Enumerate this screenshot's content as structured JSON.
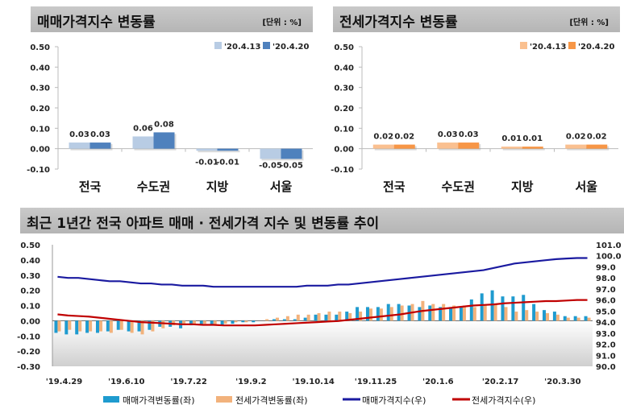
{
  "charts_header": [
    {
      "title": "매매가격지수 변동률",
      "unit": "[단위 : %]"
    },
    {
      "title": "전세가격지수 변동률",
      "unit": "[단위 : %]"
    },
    {
      "title": "최근 1년간 전국 아파트 매매 · 전세가격 지수 및 변동률 추이"
    }
  ],
  "chart_data": [
    {
      "type": "bar",
      "title": "매매가격지수 변동률",
      "unit": "[단위 : %]",
      "categories": [
        "전국",
        "수도권",
        "지방",
        "서울"
      ],
      "ylim": [
        -0.1,
        0.5
      ],
      "yticks": [
        "0.50",
        "0.40",
        "0.30",
        "0.20",
        "0.10",
        "0.00",
        "-0.10"
      ],
      "legend_position": "top-right",
      "series": [
        {
          "name": "'20.4.13",
          "values": [
            0.03,
            0.06,
            -0.01,
            -0.05
          ],
          "color": "#b8cce4"
        },
        {
          "name": "'20.4.20",
          "values": [
            0.03,
            0.08,
            -0.01,
            -0.05
          ],
          "color": "#4f81bd"
        }
      ]
    },
    {
      "type": "bar",
      "title": "전세가격지수 변동률",
      "unit": "[단위 : %]",
      "categories": [
        "전국",
        "수도권",
        "지방",
        "서울"
      ],
      "ylim": [
        -0.1,
        0.5
      ],
      "yticks": [
        "0.50",
        "0.40",
        "0.30",
        "0.20",
        "0.10",
        "0.00",
        "-0.10"
      ],
      "legend_position": "top-right",
      "series": [
        {
          "name": "'20.4.13",
          "values": [
            0.02,
            0.03,
            0.01,
            0.02
          ],
          "color": "#fac090"
        },
        {
          "name": "'20.4.20",
          "values": [
            0.02,
            0.03,
            0.01,
            0.02
          ],
          "color": "#f79646"
        }
      ]
    },
    {
      "type": "bar+line",
      "title": "최근 1년간 전국 아파트 매매 · 전세가격 지수 및 변동률 추이",
      "xticks": [
        "'19.4.29",
        "'19.6.10",
        "'19.7.22",
        "'19.9.2",
        "'19.10.14",
        "'19.11.25",
        "'20.1.6",
        "'20.2.17",
        "'20.3.30"
      ],
      "ylim_left": [
        -0.3,
        0.5
      ],
      "yticks_left": [
        "0.50",
        "0.40",
        "0.30",
        "0.20",
        "0.10",
        "0.00",
        "-0.10",
        "-0.20",
        "-0.30"
      ],
      "ylim_right": [
        90.0,
        101.0
      ],
      "yticks_right": [
        "101.0",
        "100.0",
        "99.0",
        "98.0",
        "97.0",
        "96.0",
        "95.0",
        "94.0",
        "93.0",
        "92.0",
        "91.0",
        "90.0"
      ],
      "legend_position": "bottom",
      "series": [
        {
          "name": "매매가격변동률(좌)",
          "kind": "bar",
          "axis": "left",
          "color": "#1f9bcf",
          "values": [
            -0.08,
            -0.09,
            -0.09,
            -0.08,
            -0.08,
            -0.07,
            -0.06,
            -0.07,
            -0.07,
            -0.06,
            -0.04,
            -0.04,
            -0.05,
            -0.03,
            -0.03,
            -0.03,
            -0.03,
            -0.02,
            -0.01,
            -0.01,
            0.0,
            0.01,
            0.01,
            0.01,
            0.02,
            0.04,
            0.04,
            0.04,
            0.06,
            0.09,
            0.09,
            0.09,
            0.11,
            0.11,
            0.1,
            0.09,
            0.1,
            0.09,
            0.09,
            0.09,
            0.14,
            0.18,
            0.2,
            0.16,
            0.16,
            0.17,
            0.11,
            0.07,
            0.06,
            0.03,
            0.03,
            0.03
          ]
        },
        {
          "name": "전세가격변동률(좌)",
          "kind": "bar",
          "axis": "left",
          "color": "#f2b27c",
          "values": [
            -0.07,
            -0.06,
            -0.07,
            -0.07,
            -0.07,
            -0.08,
            -0.06,
            -0.08,
            -0.09,
            -0.07,
            -0.05,
            -0.03,
            -0.03,
            -0.02,
            -0.02,
            -0.03,
            -0.02,
            -0.01,
            -0.01,
            0.0,
            0.01,
            0.02,
            0.03,
            0.04,
            0.04,
            0.05,
            0.06,
            0.06,
            0.05,
            0.06,
            0.08,
            0.08,
            0.09,
            0.1,
            0.11,
            0.13,
            0.11,
            0.11,
            0.1,
            0.1,
            0.09,
            0.1,
            0.11,
            0.09,
            0.06,
            0.07,
            0.06,
            0.05,
            0.04,
            0.02,
            0.02,
            0.02
          ]
        },
        {
          "name": "매매가격지수(우)",
          "kind": "line",
          "axis": "right",
          "color": "#1a1aa0",
          "values": [
            98.1,
            98.0,
            98.0,
            97.9,
            97.8,
            97.7,
            97.7,
            97.6,
            97.5,
            97.5,
            97.4,
            97.4,
            97.3,
            97.3,
            97.3,
            97.2,
            97.2,
            97.2,
            97.2,
            97.2,
            97.2,
            97.2,
            97.2,
            97.2,
            97.3,
            97.3,
            97.3,
            97.4,
            97.4,
            97.5,
            97.6,
            97.7,
            97.8,
            97.9,
            98.0,
            98.1,
            98.2,
            98.3,
            98.4,
            98.5,
            98.6,
            98.7,
            98.9,
            99.1,
            99.3,
            99.4,
            99.5,
            99.6,
            99.7,
            99.75,
            99.8,
            99.8
          ]
        },
        {
          "name": "전세가격지수(우)",
          "kind": "line",
          "axis": "right",
          "color": "#c00000",
          "values": [
            94.7,
            94.6,
            94.55,
            94.5,
            94.4,
            94.3,
            94.2,
            94.1,
            94.0,
            93.95,
            93.9,
            93.85,
            93.8,
            93.8,
            93.75,
            93.75,
            93.7,
            93.7,
            93.7,
            93.7,
            93.75,
            93.8,
            93.85,
            93.9,
            93.95,
            94.0,
            94.05,
            94.1,
            94.2,
            94.3,
            94.4,
            94.5,
            94.6,
            94.7,
            94.85,
            95.0,
            95.1,
            95.2,
            95.3,
            95.4,
            95.5,
            95.55,
            95.6,
            95.7,
            95.75,
            95.8,
            95.85,
            95.9,
            95.9,
            95.95,
            96.0,
            96.0
          ]
        }
      ]
    }
  ]
}
